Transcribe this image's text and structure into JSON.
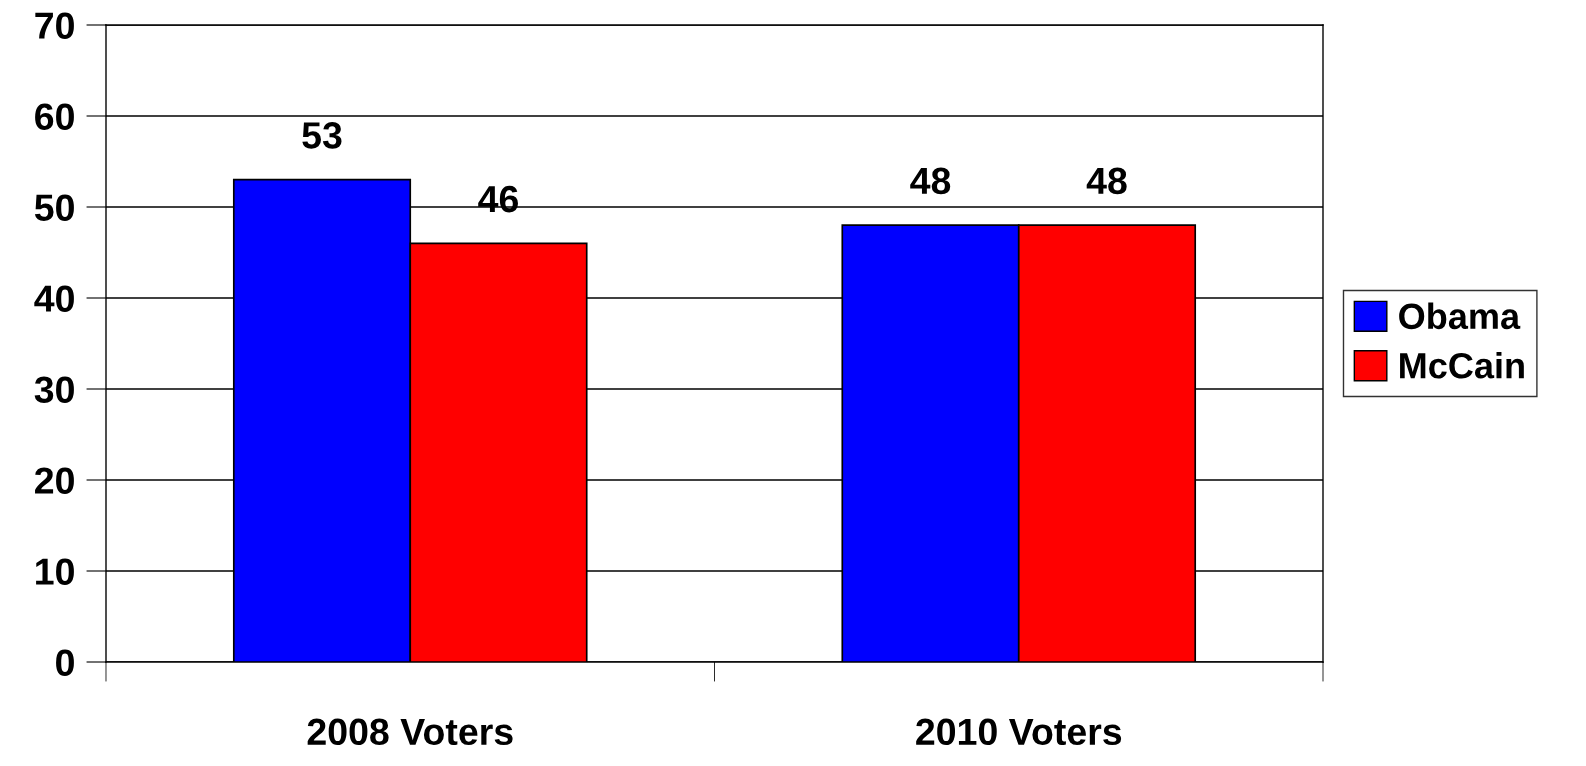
{
  "chart_data": {
    "type": "bar",
    "categories": [
      "2008 Voters",
      "2010 Voters"
    ],
    "series": [
      {
        "name": "Obama",
        "color": "#0000ff",
        "values": [
          53,
          48
        ]
      },
      {
        "name": "McCain",
        "color": "#ff0000",
        "values": [
          46,
          48
        ]
      }
    ],
    "ylim": [
      0,
      70
    ],
    "yticks": [
      0,
      10,
      20,
      30,
      40,
      50,
      60,
      70
    ],
    "grid": "y",
    "legend": "right",
    "data_labels": true
  }
}
